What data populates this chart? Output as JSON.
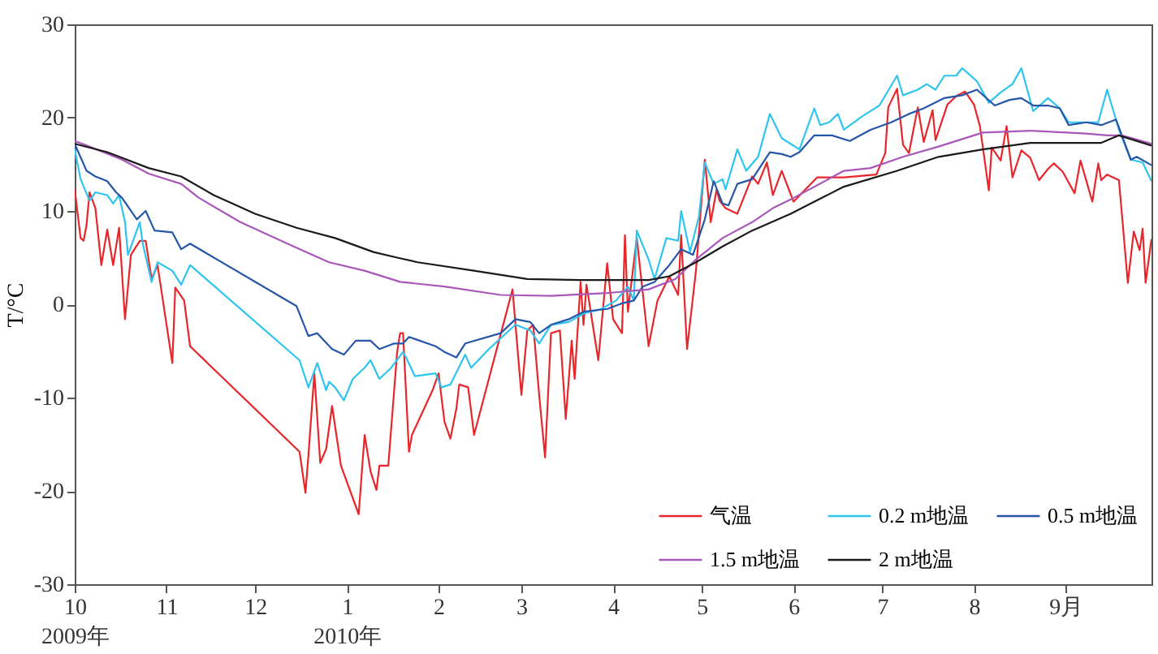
{
  "chart_data": {
    "type": "line",
    "ylabel": "T/°C",
    "xlim": [
      "2009-10-01",
      "2010-09-30"
    ],
    "ylim": [
      -30,
      30
    ],
    "yticks": [
      -30,
      -20,
      -10,
      0,
      10,
      20,
      30
    ],
    "xticks": [
      {
        "value": "2009-10-01",
        "label": "10\n2009年"
      },
      {
        "value": "2009-11-01",
        "label": "11"
      },
      {
        "value": "2009-12-01",
        "label": "12"
      },
      {
        "value": "2010-01-01",
        "label": "1\n2010年"
      },
      {
        "value": "2010-02-01",
        "label": "2"
      },
      {
        "value": "2010-03-01",
        "label": "3"
      },
      {
        "value": "2010-04-01",
        "label": "4"
      },
      {
        "value": "2010-05-01",
        "label": "5"
      },
      {
        "value": "2010-06-01",
        "label": "6"
      },
      {
        "value": "2010-07-01",
        "label": "7"
      },
      {
        "value": "2010-08-01",
        "label": "8"
      },
      {
        "value": "2010-09-01",
        "label": "9月"
      }
    ],
    "grid": false,
    "legend": "bottom right",
    "marker": "none",
    "line_style": "solid",
    "series": [
      {
        "name": "气温",
        "color": "#e8262a",
        "x": [
          "2009-10-01",
          "2009-10-03",
          "2009-10-04",
          "2009-10-05",
          "2009-10-06",
          "2009-10-08",
          "2009-10-10",
          "2009-10-12",
          "2009-10-14",
          "2009-10-16",
          "2009-10-18",
          "2009-10-20",
          "2009-10-23",
          "2009-10-25",
          "2009-10-27",
          "2009-10-29",
          "2009-11-03",
          "2009-11-04",
          "2009-11-07",
          "2009-11-09",
          "2009-12-16",
          "2009-12-18",
          "2009-12-19",
          "2009-12-21",
          "2009-12-23",
          "2009-12-25",
          "2009-12-27",
          "2009-12-30",
          "2010-01-05",
          "2010-01-07",
          "2010-01-09",
          "2010-01-11",
          "2010-01-12",
          "2010-01-15",
          "2010-01-18",
          "2010-01-19",
          "2010-01-20",
          "2010-01-22",
          "2010-01-23",
          "2010-01-30",
          "2010-02-01",
          "2010-02-03",
          "2010-02-05",
          "2010-02-07",
          "2010-02-08",
          "2010-02-11",
          "2010-02-13",
          "2010-02-26",
          "2010-03-01",
          "2010-03-03",
          "2010-03-05",
          "2010-03-07",
          "2010-03-09",
          "2010-03-11",
          "2010-03-14",
          "2010-03-16",
          "2010-03-18",
          "2010-03-19",
          "2010-03-21",
          "2010-03-22",
          "2010-03-23",
          "2010-03-27",
          "2010-03-30",
          "2010-04-01",
          "2010-04-04",
          "2010-04-05",
          "2010-04-06",
          "2010-04-09",
          "2010-04-13",
          "2010-04-16",
          "2010-04-20",
          "2010-04-23",
          "2010-04-24",
          "2010-04-26",
          "2010-04-29",
          "2010-05-02",
          "2010-05-04",
          "2010-05-06",
          "2010-05-07",
          "2010-05-09",
          "2010-05-13",
          "2010-05-18",
          "2010-05-20",
          "2010-05-23",
          "2010-05-25",
          "2010-05-28",
          "2010-06-01",
          "2010-06-09",
          "2010-06-18",
          "2010-06-29",
          "2010-07-02",
          "2010-07-03",
          "2010-07-06",
          "2010-07-08",
          "2010-07-10",
          "2010-07-13",
          "2010-07-15",
          "2010-07-18",
          "2010-07-19",
          "2010-07-23",
          "2010-07-26",
          "2010-07-29",
          "2010-08-01",
          "2010-08-03",
          "2010-08-06",
          "2010-08-07",
          "2010-08-10",
          "2010-08-12",
          "2010-08-14",
          "2010-08-17",
          "2010-08-20",
          "2010-08-23",
          "2010-08-26",
          "2010-08-28",
          "2010-08-31",
          "2010-09-04",
          "2010-09-06",
          "2010-09-10",
          "2010-09-12",
          "2010-09-13",
          "2010-09-15",
          "2010-09-19",
          "2010-09-22",
          "2010-09-24",
          "2010-09-26",
          "2010-09-27",
          "2010-09-28",
          "2010-09-30"
        ],
        "values": [
          12.3,
          7.1,
          6.8,
          8.5,
          12,
          10.3,
          4.2,
          8,
          4.2,
          8.2,
          -1.6,
          5.3,
          6.8,
          6.8,
          2.7,
          4.2,
          -6.3,
          1.8,
          0.4,
          -4.5,
          -15.8,
          -20.2,
          -16.2,
          -7.4,
          -17,
          -15.5,
          -10.9,
          -17.3,
          -22.5,
          -14,
          -17.9,
          -19.9,
          -17.3,
          -17.3,
          -5.1,
          -3.1,
          -3.1,
          -15.8,
          -14,
          -9.2,
          -7.4,
          -12.6,
          -14.4,
          -11.2,
          -8.6,
          -8.9,
          -14,
          1.6,
          -9.7,
          -2.8,
          -2.2,
          -9.7,
          -16.4,
          -3.1,
          -2.8,
          -12.3,
          -3.9,
          -8,
          2.4,
          -2.2,
          2.1,
          -6,
          4.4,
          -1.6,
          -3.1,
          7.4,
          -0.8,
          7.1,
          -4.5,
          0.4,
          3,
          1,
          7.4,
          -4.8,
          3.6,
          15.5,
          8.8,
          12.3,
          11.1,
          10.3,
          9.7,
          13.7,
          12.9,
          15.2,
          11.7,
          14.3,
          11,
          13.6,
          13.6,
          13.9,
          16.2,
          21.1,
          23.1,
          17.1,
          16.2,
          21.1,
          17.4,
          20.8,
          17.6,
          21.4,
          22.3,
          22.8,
          21.4,
          19.1,
          12.2,
          16.8,
          15.4,
          19.1,
          13.6,
          16.5,
          15.7,
          13.3,
          14.5,
          15.1,
          14.2,
          11.9,
          15.4,
          11,
          15.1,
          13.3,
          13.9,
          13.3,
          2.3,
          7.8,
          5.8,
          8.1,
          2.3,
          7
        ]
      },
      {
        "name": "0.2 m地温",
        "color": "#2ec4f0",
        "x": [
          "2009-10-01",
          "2009-10-03",
          "2009-10-06",
          "2009-10-08",
          "2009-10-12",
          "2009-10-14",
          "2009-10-16",
          "2009-10-18",
          "2009-10-19",
          "2009-10-23",
          "2009-10-24",
          "2009-10-27",
          "2009-10-29",
          "2009-11-03",
          "2009-11-06",
          "2009-11-09",
          "2009-12-16",
          "2009-12-19",
          "2009-12-22",
          "2009-12-25",
          "2009-12-26",
          "2009-12-28",
          "2009-12-31",
          "2010-01-03",
          "2010-01-07",
          "2010-01-09",
          "2010-01-12",
          "2010-01-16",
          "2010-01-20",
          "2010-01-21",
          "2010-01-24",
          "2010-01-31",
          "2010-02-02",
          "2010-02-05",
          "2010-02-10",
          "2010-02-12",
          "2010-02-18",
          "2010-02-27",
          "2010-03-04",
          "2010-03-07",
          "2010-03-11",
          "2010-03-17",
          "2010-03-22",
          "2010-03-28",
          "2010-04-02",
          "2010-04-06",
          "2010-04-08",
          "2010-04-09",
          "2010-04-13",
          "2010-04-15",
          "2010-04-19",
          "2010-04-23",
          "2010-04-24",
          "2010-04-27",
          "2010-04-30",
          "2010-05-02",
          "2010-05-05",
          "2010-05-08",
          "2010-05-09",
          "2010-05-13",
          "2010-05-16",
          "2010-05-20",
          "2010-05-24",
          "2010-05-28",
          "2010-05-31",
          "2010-06-03",
          "2010-06-08",
          "2010-06-10",
          "2010-06-13",
          "2010-06-16",
          "2010-06-18",
          "2010-06-24",
          "2010-06-30",
          "2010-07-06",
          "2010-07-08",
          "2010-07-13",
          "2010-07-16",
          "2010-07-19",
          "2010-07-22",
          "2010-07-26",
          "2010-07-28",
          "2010-08-02",
          "2010-08-06",
          "2010-08-10",
          "2010-08-14",
          "2010-08-17",
          "2010-08-21",
          "2010-08-26",
          "2010-08-30",
          "2010-09-02",
          "2010-09-08",
          "2010-09-12",
          "2010-09-15",
          "2010-09-19",
          "2010-09-23",
          "2010-09-27",
          "2010-09-30"
        ],
        "values": [
          16.6,
          13.4,
          11.1,
          12,
          11.7,
          10.8,
          11.7,
          8.8,
          5.3,
          8.8,
          6.5,
          2.4,
          4.5,
          3.6,
          2.1,
          4.2,
          -6,
          -8.9,
          -6.3,
          -9.2,
          -8.3,
          -8.9,
          -10.3,
          -8,
          -6.8,
          -6,
          -8,
          -6.8,
          -5.1,
          -5.7,
          -7.7,
          -7.4,
          -8.9,
          -8.6,
          -5.4,
          -6.8,
          -4.8,
          -2.2,
          -2.8,
          -4.2,
          -2.2,
          -1.9,
          -1,
          -0.5,
          0.4,
          1.9,
          0.4,
          7.9,
          4.8,
          2.7,
          7.1,
          6.8,
          10,
          5.6,
          9.4,
          15.2,
          12.9,
          13.4,
          12.3,
          16.6,
          14.3,
          15.8,
          20.4,
          17.8,
          17.2,
          16.6,
          21,
          19.2,
          19.5,
          20.4,
          18.7,
          20.1,
          21.3,
          24.5,
          22.4,
          23,
          23.6,
          23,
          24.5,
          24.5,
          25.3,
          23.9,
          21.6,
          22.7,
          23.6,
          25.3,
          20.7,
          22.1,
          21,
          19.5,
          19.5,
          19.5,
          23,
          18.7,
          15.5,
          15.2,
          13.2
        ]
      },
      {
        "name": "0.5 m地温",
        "color": "#2656a8",
        "x": [
          "2009-10-01",
          "2009-10-05",
          "2009-10-08",
          "2009-10-12",
          "2009-10-15",
          "2009-10-17",
          "2009-10-22",
          "2009-10-25",
          "2009-10-28",
          "2009-11-03",
          "2009-11-06",
          "2009-11-09",
          "2009-12-15",
          "2009-12-19",
          "2009-12-22",
          "2009-12-27",
          "2009-12-31",
          "2010-01-04",
          "2010-01-09",
          "2010-01-12",
          "2010-01-17",
          "2010-01-20",
          "2010-01-22",
          "2010-01-31",
          "2010-02-03",
          "2010-02-07",
          "2010-02-10",
          "2010-02-22",
          "2010-02-27",
          "2010-03-04",
          "2010-03-07",
          "2010-03-11",
          "2010-03-17",
          "2010-03-22",
          "2010-03-30",
          "2010-04-04",
          "2010-04-08",
          "2010-04-11",
          "2010-04-15",
          "2010-04-20",
          "2010-04-24",
          "2010-04-28",
          "2010-05-02",
          "2010-05-05",
          "2010-05-08",
          "2010-05-10",
          "2010-05-13",
          "2010-05-18",
          "2010-05-24",
          "2010-05-28",
          "2010-05-31",
          "2010-06-03",
          "2010-06-08",
          "2010-06-14",
          "2010-06-20",
          "2010-06-27",
          "2010-07-04",
          "2010-07-10",
          "2010-07-15",
          "2010-07-22",
          "2010-07-28",
          "2010-08-02",
          "2010-08-08",
          "2010-08-13",
          "2010-08-17",
          "2010-08-21",
          "2010-08-26",
          "2010-08-30",
          "2010-09-02",
          "2010-09-08",
          "2010-09-13",
          "2010-09-18",
          "2010-09-23",
          "2010-09-25",
          "2010-09-30"
        ],
        "values": [
          17.2,
          14.3,
          13.7,
          13.2,
          12,
          11.4,
          9.1,
          10,
          7.9,
          7.7,
          5.9,
          6.5,
          -0.2,
          -3.4,
          -3.1,
          -4.8,
          -5.4,
          -3.9,
          -3.9,
          -4.8,
          -4.2,
          -4.2,
          -3.5,
          -4.5,
          -5.1,
          -5.7,
          -4.2,
          -3.1,
          -1.6,
          -1.9,
          -3.1,
          -2.2,
          -1.6,
          -0.8,
          -0.5,
          0.1,
          0.4,
          1.9,
          2.4,
          4.2,
          5.9,
          5.3,
          9.1,
          13.2,
          10.8,
          10.6,
          12.9,
          13.4,
          16.3,
          16.1,
          15.8,
          16.3,
          18.1,
          18.1,
          17.5,
          18.7,
          19.5,
          20.4,
          21,
          22.1,
          22.4,
          23,
          21.3,
          21.9,
          22.1,
          21.3,
          21.3,
          21,
          19.2,
          19.5,
          19.2,
          19.8,
          15.5,
          15.8,
          14.9
        ]
      },
      {
        "name": "1.5 m地温",
        "color": "#a957b8",
        "x": [
          "2009-10-01",
          "2009-10-06",
          "2009-10-17",
          "2009-10-26",
          "2009-11-06",
          "2009-11-12",
          "2009-11-26",
          "2009-12-14",
          "2009-12-26",
          "2010-01-07",
          "2010-01-19",
          "2010-02-03",
          "2010-02-22",
          "2010-03-11",
          "2010-03-30",
          "2010-04-13",
          "2010-04-22",
          "2010-04-29",
          "2010-05-08",
          "2010-05-18",
          "2010-05-25",
          "2010-06-01",
          "2010-06-18",
          "2010-06-27",
          "2010-07-08",
          "2010-07-20",
          "2010-08-04",
          "2010-08-20",
          "2010-09-08",
          "2010-09-15",
          "2010-09-20",
          "2010-09-30"
        ],
        "values": [
          17.5,
          16.9,
          15.5,
          14,
          12.9,
          11.4,
          8.8,
          6.2,
          4.5,
          3.6,
          2.4,
          1.9,
          1,
          0.9,
          1.2,
          1.6,
          2.7,
          4.8,
          7.1,
          8.8,
          10.3,
          11.4,
          14.3,
          14.6,
          15.8,
          16.9,
          18.4,
          18.6,
          18.3,
          18.1,
          18.1,
          17.2
        ]
      },
      {
        "name": "2 m地温",
        "color": "#1a1a1a",
        "x": [
          "2009-10-01",
          "2009-10-12",
          "2009-10-26",
          "2009-11-06",
          "2009-11-17",
          "2009-12-01",
          "2009-12-15",
          "2009-12-28",
          "2010-01-10",
          "2010-01-18",
          "2010-01-25",
          "2010-02-13",
          "2010-03-03",
          "2010-03-21",
          "2010-04-13",
          "2010-04-20",
          "2010-04-29",
          "2010-05-08",
          "2010-05-18",
          "2010-05-31",
          "2010-06-18",
          "2010-07-06",
          "2010-07-20",
          "2010-08-04",
          "2010-08-20",
          "2010-09-13",
          "2010-09-19",
          "2010-09-30"
        ],
        "values": [
          17.2,
          16.3,
          14.6,
          13.7,
          11.7,
          9.7,
          8.2,
          7.1,
          5.6,
          5,
          4.5,
          3.6,
          2.7,
          2.6,
          2.6,
          3,
          4.5,
          6.2,
          7.9,
          9.7,
          12.6,
          14.3,
          15.8,
          16.6,
          17.3,
          17.3,
          18.1,
          17
        ]
      }
    ]
  }
}
